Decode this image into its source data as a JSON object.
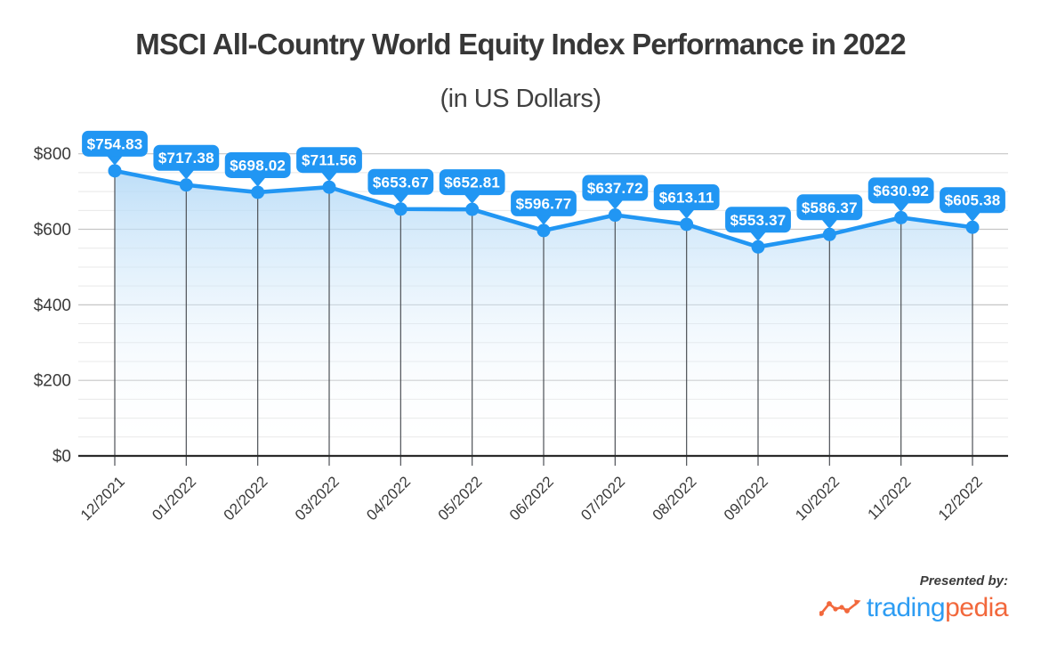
{
  "title": "MSCI All-Country World Equity Index Performance in 2022",
  "subtitle": "(in US Dollars)",
  "chart_data": {
    "type": "area",
    "title": "MSCI All-Country World Equity Index Performance in 2022",
    "subtitle": "(in US Dollars)",
    "categories": [
      "12/2021",
      "01/2022",
      "02/2022",
      "03/2022",
      "04/2022",
      "05/2022",
      "06/2022",
      "07/2022",
      "08/2022",
      "09/2022",
      "10/2022",
      "11/2022",
      "12/2022"
    ],
    "values": [
      754.83,
      717.38,
      698.02,
      711.56,
      653.67,
      652.81,
      596.77,
      637.72,
      613.11,
      553.37,
      586.37,
      630.92,
      605.38
    ],
    "point_labels": [
      "$754.83",
      "$717.38",
      "$698.02",
      "$711.56",
      "$653.67",
      "$652.81",
      "$596.77",
      "$637.72",
      "$613.11",
      "$553.37",
      "$586.37",
      "$630.92",
      "$605.38"
    ],
    "y_tick_labels": [
      "$0",
      "$200",
      "$400",
      "$600",
      "$800"
    ],
    "y_major_ticks": [
      0,
      200,
      400,
      600,
      800
    ],
    "y_minor_step": 50,
    "ylim": [
      0,
      800
    ],
    "xlabel": "",
    "ylabel": "",
    "legend": "none",
    "grid": {
      "horizontal_major": true,
      "horizontal_minor": true,
      "vertical_droplines": true
    }
  },
  "footer": {
    "presented_by": "Presented by:",
    "brand": {
      "part1": "trading",
      "part2": "pedia"
    }
  },
  "colors": {
    "series_blue": "#2196f3",
    "badge_blue": "#2196f3",
    "badge_text": "#ffffff",
    "brand_blue": "#2e9df3",
    "brand_orange": "#f2683c",
    "area_top": "rgba(173,214,246,0.9)",
    "area_bottom": "rgba(255,255,255,0)",
    "grid_major": "#c6c6c6",
    "grid_minor": "#e8e8e8",
    "dropline": "#4d5156",
    "axis": "#2b2b2b",
    "label_text": "#3a3a3a"
  }
}
